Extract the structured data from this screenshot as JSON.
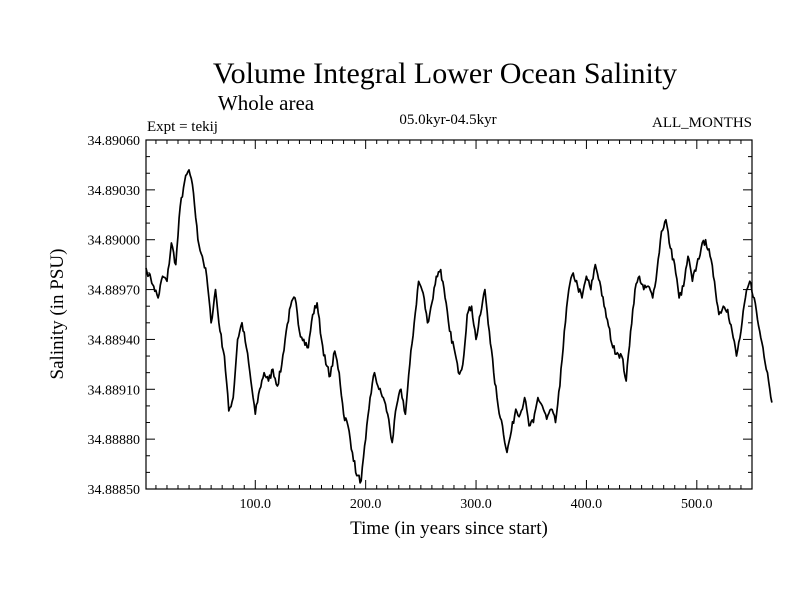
{
  "chart_data": {
    "type": "line",
    "title": "Volume Integral Lower Ocean Salinity",
    "subtitle": "Whole area",
    "experiment_label": "Expt = tekij",
    "period_label": "05.0kyr-04.5kyr",
    "months_label": "ALL_MONTHS",
    "xlabel": "Time (in years since start)",
    "ylabel": "Salinity (in PSU)",
    "xlim": [
      1,
      550
    ],
    "ylim": [
      34.8885,
      34.8906
    ],
    "x_ticks": [
      100,
      200,
      300,
      400,
      500
    ],
    "x_tick_labels": [
      "100.0",
      "200.0",
      "300.0",
      "400.0",
      "500.0"
    ],
    "y_ticks": [
      34.8885,
      34.8888,
      34.8891,
      34.8894,
      34.8897,
      34.89,
      34.8903,
      34.8906
    ],
    "y_tick_labels": [
      "34.88850",
      "34.88880",
      "34.88910",
      "34.88940",
      "34.88970",
      "34.89000",
      "34.89030",
      "34.89060"
    ],
    "series": [
      {
        "name": "Salinity",
        "color": "#000000",
        "points": [
          [
            1,
            34.88983
          ],
          [
            8,
            34.88972
          ],
          [
            12,
            34.88965
          ],
          [
            16,
            34.88978
          ],
          [
            20,
            34.88975
          ],
          [
            24,
            34.88998
          ],
          [
            28,
            34.88985
          ],
          [
            32,
            34.8902
          ],
          [
            36,
            34.89035
          ],
          [
            40,
            34.89042
          ],
          [
            44,
            34.89028
          ],
          [
            48,
            34.89
          ],
          [
            52,
            34.8899
          ],
          [
            56,
            34.88978
          ],
          [
            60,
            34.8895
          ],
          [
            64,
            34.8897
          ],
          [
            68,
            34.88945
          ],
          [
            72,
            34.8893
          ],
          [
            76,
            34.88897
          ],
          [
            80,
            34.88905
          ],
          [
            84,
            34.8894
          ],
          [
            88,
            34.8895
          ],
          [
            92,
            34.88935
          ],
          [
            96,
            34.88915
          ],
          [
            100,
            34.88895
          ],
          [
            104,
            34.8891
          ],
          [
            108,
            34.8892
          ],
          [
            112,
            34.88915
          ],
          [
            116,
            34.88922
          ],
          [
            120,
            34.88912
          ],
          [
            124,
            34.88925
          ],
          [
            128,
            34.88945
          ],
          [
            132,
            34.8896
          ],
          [
            136,
            34.88965
          ],
          [
            140,
            34.88945
          ],
          [
            144,
            34.8894
          ],
          [
            148,
            34.88935
          ],
          [
            152,
            34.88955
          ],
          [
            156,
            34.88962
          ],
          [
            160,
            34.8894
          ],
          [
            164,
            34.88925
          ],
          [
            168,
            34.88918
          ],
          [
            172,
            34.88933
          ],
          [
            176,
            34.8892
          ],
          [
            180,
            34.88895
          ],
          [
            184,
            34.88888
          ],
          [
            188,
            34.88872
          ],
          [
            192,
            34.88858
          ],
          [
            196,
            34.88855
          ],
          [
            200,
            34.8888
          ],
          [
            204,
            34.88905
          ],
          [
            208,
            34.8892
          ],
          [
            212,
            34.8891
          ],
          [
            216,
            34.88905
          ],
          [
            220,
            34.88895
          ],
          [
            224,
            34.88878
          ],
          [
            228,
            34.889
          ],
          [
            232,
            34.8891
          ],
          [
            236,
            34.88895
          ],
          [
            240,
            34.88925
          ],
          [
            244,
            34.8895
          ],
          [
            248,
            34.88975
          ],
          [
            252,
            34.88968
          ],
          [
            256,
            34.8895
          ],
          [
            260,
            34.88962
          ],
          [
            264,
            34.88978
          ],
          [
            268,
            34.88982
          ],
          [
            272,
            34.88965
          ],
          [
            276,
            34.88945
          ],
          [
            280,
            34.88935
          ],
          [
            284,
            34.8892
          ],
          [
            288,
            34.88925
          ],
          [
            292,
            34.88955
          ],
          [
            296,
            34.8896
          ],
          [
            300,
            34.8894
          ],
          [
            304,
            34.88955
          ],
          [
            308,
            34.8897
          ],
          [
            312,
            34.88945
          ],
          [
            316,
            34.8892
          ],
          [
            320,
            34.889
          ],
          [
            324,
            34.88888
          ],
          [
            328,
            34.88872
          ],
          [
            332,
            34.88885
          ],
          [
            336,
            34.88898
          ],
          [
            340,
            34.88895
          ],
          [
            344,
            34.88905
          ],
          [
            348,
            34.88888
          ],
          [
            352,
            34.8889
          ],
          [
            356,
            34.88905
          ],
          [
            360,
            34.889
          ],
          [
            364,
            34.88892
          ],
          [
            368,
            34.88898
          ],
          [
            372,
            34.8889
          ],
          [
            376,
            34.88912
          ],
          [
            380,
            34.88945
          ],
          [
            384,
            34.8897
          ],
          [
            388,
            34.8898
          ],
          [
            392,
            34.88972
          ],
          [
            396,
            34.88965
          ],
          [
            400,
            34.88978
          ],
          [
            404,
            34.8897
          ],
          [
            408,
            34.88985
          ],
          [
            412,
            34.88975
          ],
          [
            416,
            34.8896
          ],
          [
            420,
            34.88948
          ],
          [
            424,
            34.88935
          ],
          [
            428,
            34.88932
          ],
          [
            432,
            34.8893
          ],
          [
            436,
            34.88915
          ],
          [
            440,
            34.88945
          ],
          [
            444,
            34.8897
          ],
          [
            448,
            34.88978
          ],
          [
            452,
            34.8897
          ],
          [
            456,
            34.88972
          ],
          [
            460,
            34.88965
          ],
          [
            464,
            34.88982
          ],
          [
            468,
            34.89005
          ],
          [
            472,
            34.89012
          ],
          [
            476,
            34.88995
          ],
          [
            480,
            34.88985
          ],
          [
            484,
            34.88965
          ],
          [
            488,
            34.88972
          ],
          [
            492,
            34.8899
          ],
          [
            496,
            34.88975
          ],
          [
            500,
            34.88985
          ],
          [
            504,
            34.88995
          ],
          [
            508,
            34.89
          ],
          [
            512,
            34.8899
          ],
          [
            516,
            34.88975
          ],
          [
            520,
            34.88955
          ],
          [
            524,
            34.8896
          ],
          [
            528,
            34.88958
          ],
          [
            532,
            34.88945
          ],
          [
            536,
            34.8893
          ],
          [
            540,
            34.88945
          ],
          [
            544,
            34.88965
          ],
          [
            548,
            34.88975
          ],
          [
            552,
            34.88965
          ],
          [
            556,
            34.88948
          ],
          [
            560,
            34.88935
          ],
          [
            564,
            34.8892
          ],
          [
            568,
            34.88902
          ]
        ]
      }
    ]
  }
}
